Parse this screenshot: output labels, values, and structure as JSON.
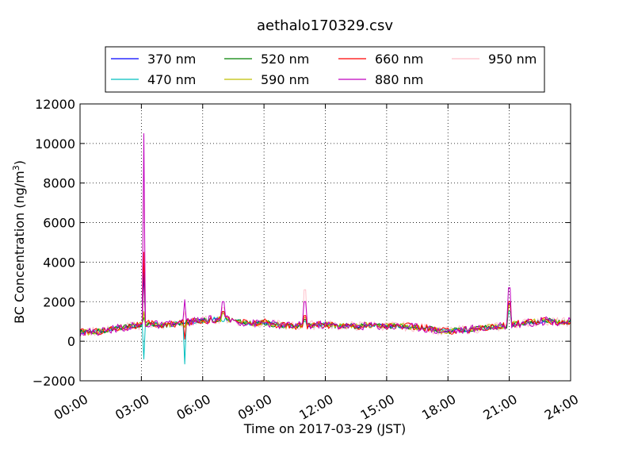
{
  "chart_data": {
    "type": "line",
    "title": "aethalo170329.csv",
    "xlabel": "Time on 2017-03-29 (JST)",
    "ylabel": "BC Concentration (ng/m",
    "ylabel_sup": "3",
    "ylabel_tail": ")",
    "ylim": [
      -2000,
      12000
    ],
    "xlim": [
      "00:00",
      "24:00"
    ],
    "x_ticks": [
      "00:00",
      "03:00",
      "06:00",
      "09:00",
      "12:00",
      "15:00",
      "18:00",
      "21:00",
      "24:00"
    ],
    "y_ticks": [
      "−2000",
      "0",
      "2000",
      "4000",
      "6000",
      "8000",
      "10000",
      "12000"
    ],
    "grid": true,
    "legend_position": "top-center",
    "series": [
      {
        "name": "370 nm",
        "color": "#0000ff"
      },
      {
        "name": "470 nm",
        "color": "#00bfbf"
      },
      {
        "name": "520 nm",
        "color": "#008000"
      },
      {
        "name": "590 nm",
        "color": "#bfbf00"
      },
      {
        "name": "660 nm",
        "color": "#ff0000"
      },
      {
        "name": "880 nm",
        "color": "#bf00bf"
      },
      {
        "name": "950 nm",
        "color": "#ffc0cb"
      }
    ],
    "base_profile": {
      "x_hours": [
        0,
        0.5,
        1,
        1.5,
        2,
        2.5,
        3,
        3.5,
        4,
        4.5,
        5,
        5.5,
        6,
        6.5,
        7,
        7.5,
        8,
        8.5,
        9,
        9.5,
        10,
        10.5,
        11,
        11.5,
        12,
        12.5,
        13,
        13.5,
        14,
        14.5,
        15,
        15.5,
        16,
        16.5,
        17,
        17.5,
        18,
        18.5,
        19,
        19.5,
        20,
        20.5,
        21,
        21.5,
        22,
        22.5,
        23,
        23.5,
        24
      ],
      "y": [
        450,
        480,
        500,
        600,
        700,
        750,
        820,
        900,
        780,
        850,
        950,
        1000,
        1050,
        1100,
        1150,
        1050,
        950,
        900,
        950,
        850,
        800,
        780,
        800,
        820,
        850,
        800,
        780,
        760,
        800,
        790,
        780,
        760,
        740,
        720,
        650,
        550,
        500,
        550,
        600,
        650,
        700,
        720,
        800,
        900,
        950,
        1000,
        1050,
        950,
        1000
      ]
    },
    "spikes": [
      {
        "x_hour": 3.1,
        "y": {
          "370 nm": 3500,
          "470 nm": -900,
          "520 nm": 1200,
          "590 nm": 1500,
          "660 nm": 4500,
          "880 nm": 10500,
          "950 nm": 9000
        }
      },
      {
        "x_hour": 5.1,
        "y": {
          "370 nm": 900,
          "470 nm": -1150,
          "520 nm": 700,
          "590 nm": 700,
          "660 nm": 100,
          "880 nm": 2100,
          "950 nm": 1500
        }
      },
      {
        "x_hour": 7.0,
        "y": {
          "370 nm": 1400,
          "470 nm": 1000,
          "520 nm": 1500,
          "590 nm": 1400,
          "660 nm": 1500,
          "880 nm": 2000,
          "950 nm": 1700
        }
      },
      {
        "x_hour": 11.0,
        "y": {
          "370 nm": 1100,
          "470 nm": 1000,
          "520 nm": 1100,
          "590 nm": 1200,
          "660 nm": 1300,
          "880 nm": 2000,
          "950 nm": 2600
        }
      },
      {
        "x_hour": 21.0,
        "y": {
          "370 nm": 1900,
          "470 nm": 1500,
          "520 nm": 1800,
          "590 nm": 1800,
          "660 nm": 2000,
          "880 nm": 2700,
          "950 nm": 2000
        }
      }
    ]
  }
}
